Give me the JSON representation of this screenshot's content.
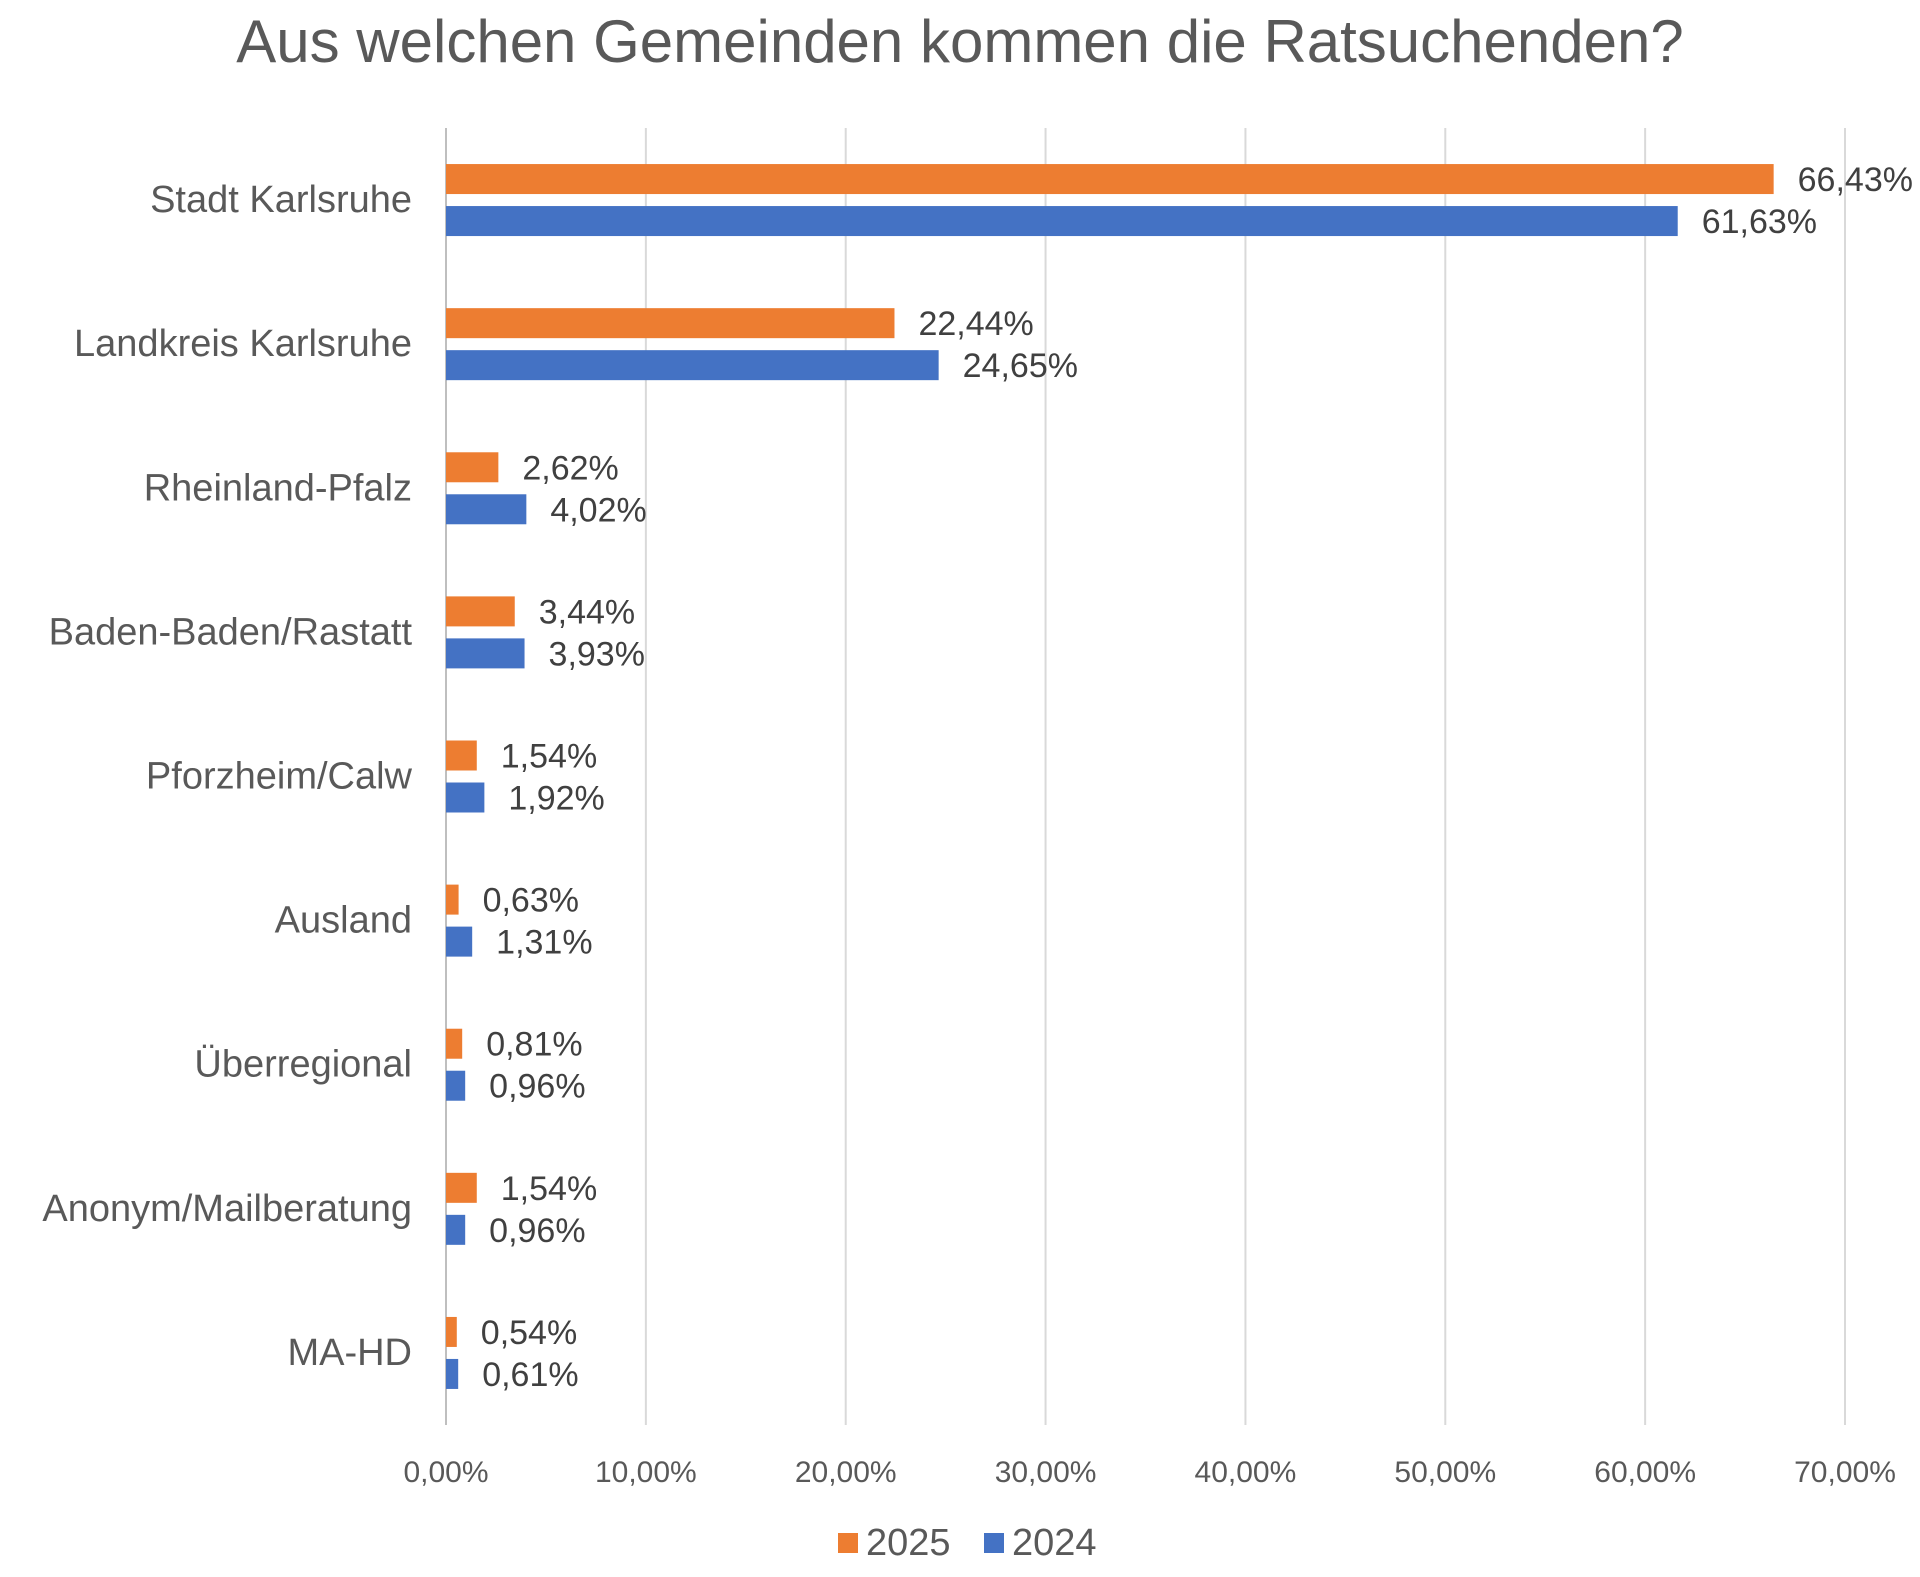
{
  "chart_data": {
    "type": "bar",
    "orientation": "horizontal",
    "title": "Aus welchen Gemeinden kommen die Ratsuchenden?",
    "xlabel": "",
    "ylabel": "",
    "xlim": [
      0,
      70
    ],
    "grid": true,
    "legend_position": "bottom",
    "categories": [
      "Stadt Karlsruhe",
      "Landkreis Karlsruhe",
      "Rheinland-Pfalz",
      "Baden-Baden/Rastatt",
      "Pforzheim/Calw",
      "Ausland",
      "Überregional",
      "Anonym/Mailberatung",
      "MA-HD"
    ],
    "series": [
      {
        "name": "2025",
        "color": "#ED7D31",
        "values": [
          66.43,
          22.44,
          2.62,
          3.44,
          1.54,
          0.63,
          0.81,
          1.54,
          0.54
        ],
        "labels": [
          "66,43%",
          "22,44%",
          "2,62%",
          "3,44%",
          "1,54%",
          "0,63%",
          "0,81%",
          "1,54%",
          "0,54%"
        ]
      },
      {
        "name": "2024",
        "color": "#4472C4",
        "values": [
          61.63,
          24.65,
          4.02,
          3.93,
          1.92,
          1.31,
          0.96,
          0.96,
          0.61
        ],
        "labels": [
          "61,63%",
          "24,65%",
          "4,02%",
          "3,93%",
          "1,92%",
          "1,31%",
          "0,96%",
          "0,96%",
          "0,61%"
        ]
      }
    ],
    "ticks": [
      0,
      10,
      20,
      30,
      40,
      50,
      60,
      70
    ],
    "tick_labels": [
      "0,00%",
      "10,00%",
      "20,00%",
      "30,00%",
      "40,00%",
      "50,00%",
      "60,00%",
      "70,00%"
    ]
  }
}
